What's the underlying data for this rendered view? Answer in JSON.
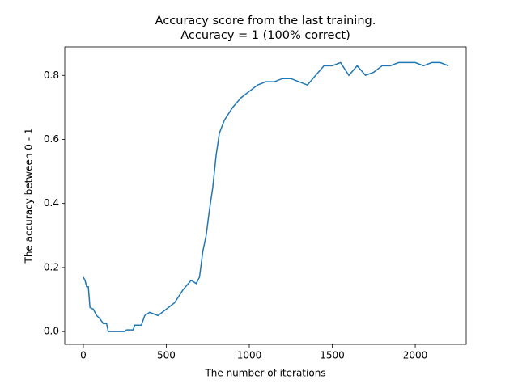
{
  "chart_data": {
    "type": "line",
    "title": "Accuracy score from the last training.",
    "subtitle": "Accuracy = 1 (100% correct)",
    "x_label": "The number of iterations",
    "y_label": "The accuracy between 0 - 1",
    "x": [
      0,
      10,
      20,
      30,
      40,
      60,
      80,
      100,
      120,
      140,
      150,
      250,
      260,
      300,
      310,
      350,
      370,
      400,
      450,
      500,
      550,
      600,
      650,
      680,
      700,
      720,
      740,
      760,
      780,
      800,
      820,
      850,
      900,
      950,
      1000,
      1050,
      1100,
      1150,
      1200,
      1250,
      1300,
      1350,
      1400,
      1450,
      1500,
      1550,
      1600,
      1650,
      1700,
      1750,
      1800,
      1850,
      1900,
      1950,
      2000,
      2050,
      2100,
      2150,
      2200
    ],
    "series": [
      {
        "name": "accuracy",
        "color": "#1f77b4",
        "values": [
          0.17,
          0.16,
          0.14,
          0.14,
          0.075,
          0.07,
          0.05,
          0.04,
          0.025,
          0.025,
          0.0,
          0.0,
          0.005,
          0.005,
          0.02,
          0.02,
          0.05,
          0.06,
          0.05,
          0.07,
          0.09,
          0.13,
          0.16,
          0.15,
          0.17,
          0.25,
          0.3,
          0.38,
          0.45,
          0.55,
          0.62,
          0.66,
          0.7,
          0.73,
          0.75,
          0.77,
          0.78,
          0.78,
          0.79,
          0.79,
          0.78,
          0.77,
          0.8,
          0.83,
          0.83,
          0.84,
          0.8,
          0.83,
          0.8,
          0.81,
          0.83,
          0.83,
          0.84,
          0.84,
          0.84,
          0.83,
          0.84,
          0.84,
          0.83
        ]
      }
    ],
    "xlim": [
      -112,
      2307
    ],
    "ylim": [
      -0.04,
      0.889
    ],
    "xticks": [
      0,
      500,
      1000,
      1500,
      2000
    ],
    "yticks": [
      {
        "value": 0,
        "label": "0.0"
      },
      0.2,
      0.4,
      0.6,
      0.8
    ]
  }
}
